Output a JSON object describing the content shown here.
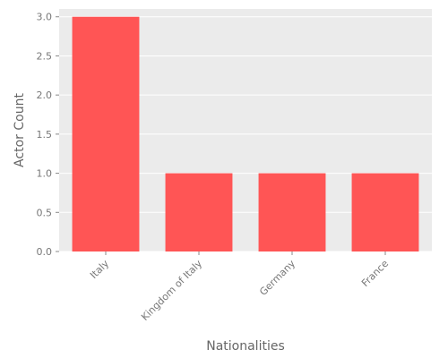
{
  "chart_data": {
    "type": "bar",
    "title": "",
    "xlabel": "Nationalities",
    "ylabel": "Actor Count",
    "categories": [
      "Italy",
      "Kingdom of Italy",
      "Germany",
      "France"
    ],
    "values": [
      3,
      1,
      1,
      1
    ],
    "ylim": [
      0,
      3.1
    ],
    "yticks": [
      "0.0",
      "0.5",
      "1.0",
      "1.5",
      "2.0",
      "2.5",
      "3.0"
    ],
    "grid": true,
    "bar_color": "#ff5555",
    "plot_background": "#ebebeb",
    "grid_color": "#ffffff"
  }
}
